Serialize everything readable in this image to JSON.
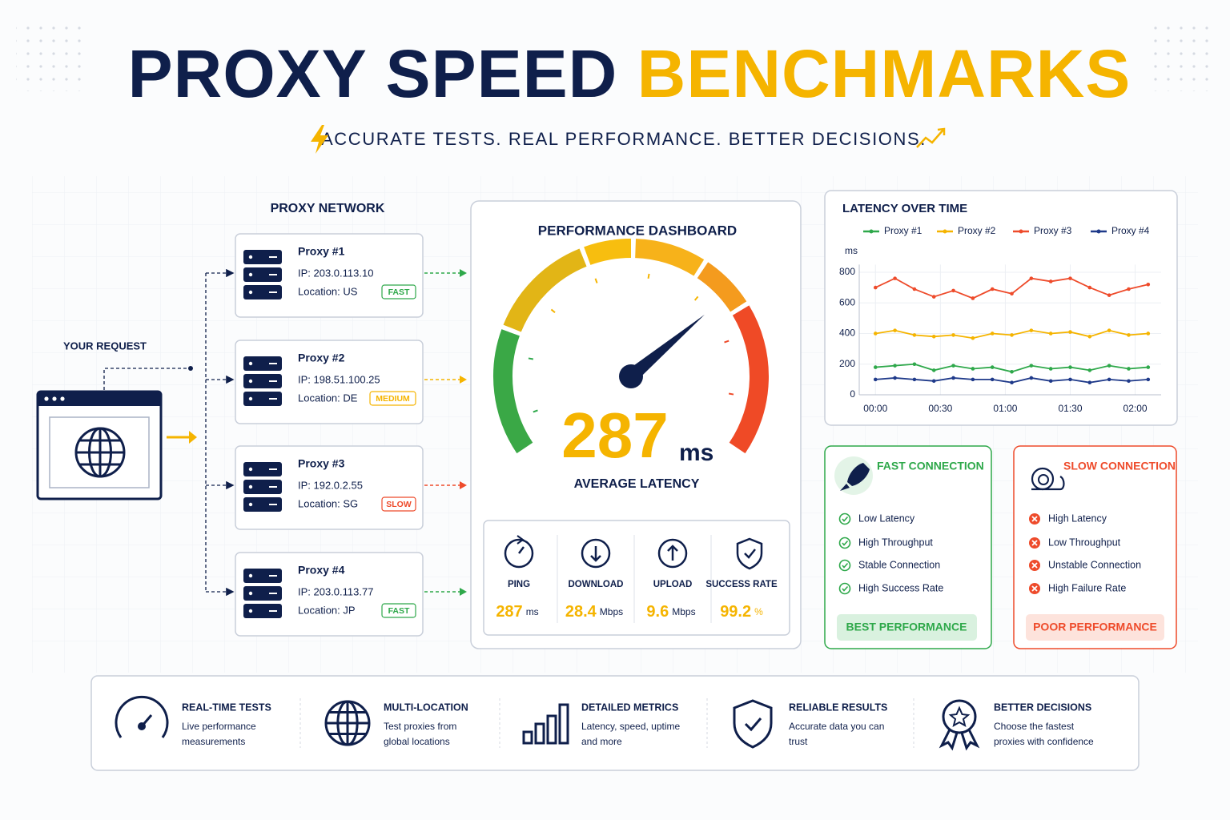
{
  "header": {
    "title_part1": "PROXY SPEED",
    "title_part2": "BENCHMARKS",
    "subtitle": "ACCURATE TESTS. REAL PERFORMANCE. BETTER DECISIONS."
  },
  "request": {
    "label": "YOUR REQUEST"
  },
  "network": {
    "title": "PROXY NETWORK",
    "proxies": [
      {
        "name": "Proxy #1",
        "ip": "IP: 203.0.113.10",
        "location": "Location: US",
        "badge": "FAST",
        "color": "#2ea84a"
      },
      {
        "name": "Proxy #2",
        "ip": "IP: 198.51.100.25",
        "location": "Location: DE",
        "badge": "MEDIUM",
        "color": "#f5b400"
      },
      {
        "name": "Proxy #3",
        "ip": "IP: 192.0.2.55",
        "location": "Location: SG",
        "badge": "SLOW",
        "color": "#ee4b2b"
      },
      {
        "name": "Proxy #4",
        "ip": "IP: 203.0.113.77",
        "location": "Location: JP",
        "badge": "FAST",
        "color": "#2ea84a"
      }
    ]
  },
  "dashboard": {
    "title": "PERFORMANCE DASHBOARD",
    "latency": "287",
    "latency_unit": "ms",
    "latency_label": "AVERAGE LATENCY",
    "stats": [
      {
        "label": "PING",
        "value": "287",
        "unit": "ms"
      },
      {
        "label": "DOWNLOAD",
        "value": "28.4",
        "unit": "Mbps"
      },
      {
        "label": "UPLOAD",
        "value": "9.6",
        "unit": "Mbps"
      },
      {
        "label": "SUCCESS RATE",
        "value": "99.2",
        "unit": "%"
      }
    ]
  },
  "chart_data": {
    "type": "line",
    "title": "LATENCY OVER TIME",
    "y_label": "ms",
    "x": [
      0,
      9,
      18,
      27,
      36,
      45,
      54,
      63,
      72,
      81,
      90,
      99,
      108,
      117,
      126
    ],
    "xlim": [
      -7.5,
      132
    ],
    "xticks": [
      {
        "value": 0,
        "label": "00:00"
      },
      {
        "value": 30,
        "label": "00:30"
      },
      {
        "value": 60,
        "label": "01:00"
      },
      {
        "value": 90,
        "label": "01:30"
      },
      {
        "value": 120,
        "label": "02:00"
      }
    ],
    "ylim": [
      0,
      850
    ],
    "yticks": [
      0,
      200,
      400,
      600,
      800
    ],
    "grid": true,
    "series": [
      {
        "name": "Proxy #1",
        "color": "#2ea84a",
        "values": [
          180,
          190,
          200,
          160,
          190,
          170,
          180,
          150,
          190,
          170,
          180,
          160,
          190,
          170,
          180
        ]
      },
      {
        "name": "Proxy #2",
        "color": "#f5b400",
        "values": [
          400,
          420,
          390,
          380,
          390,
          370,
          400,
          390,
          420,
          400,
          410,
          380,
          420,
          390,
          400
        ]
      },
      {
        "name": "Proxy #3",
        "color": "#ee4b2b",
        "values": [
          700,
          760,
          690,
          640,
          680,
          630,
          690,
          660,
          760,
          740,
          760,
          700,
          650,
          690,
          720
        ]
      },
      {
        "name": "Proxy #4",
        "color": "#1f3a8a",
        "values": [
          100,
          110,
          100,
          90,
          110,
          100,
          100,
          80,
          110,
          90,
          100,
          80,
          100,
          90,
          100
        ]
      }
    ]
  },
  "fast": {
    "title": "FAST CONNECTION",
    "items": [
      "Low Latency",
      "High Throughput",
      "Stable Connection",
      "High Success Rate"
    ],
    "button": "BEST PERFORMANCE"
  },
  "slow": {
    "title": "SLOW CONNECTION",
    "items": [
      "High Latency",
      "Low Throughput",
      "Unstable Connection",
      "High Failure Rate"
    ],
    "button": "POOR PERFORMANCE"
  },
  "features": [
    {
      "title": "REAL-TIME TESTS",
      "desc": [
        "Live performance",
        "measurements"
      ]
    },
    {
      "title": "MULTI-LOCATION",
      "desc": [
        "Test proxies from",
        "global locations"
      ]
    },
    {
      "title": "DETAILED METRICS",
      "desc": [
        "Latency, speed, uptime",
        "and more"
      ]
    },
    {
      "title": "RELIABLE RESULTS",
      "desc": [
        "Accurate data you can",
        "trust"
      ]
    },
    {
      "title": "BETTER DECISIONS",
      "desc": [
        "Choose the fastest",
        "proxies with confidence"
      ]
    }
  ]
}
